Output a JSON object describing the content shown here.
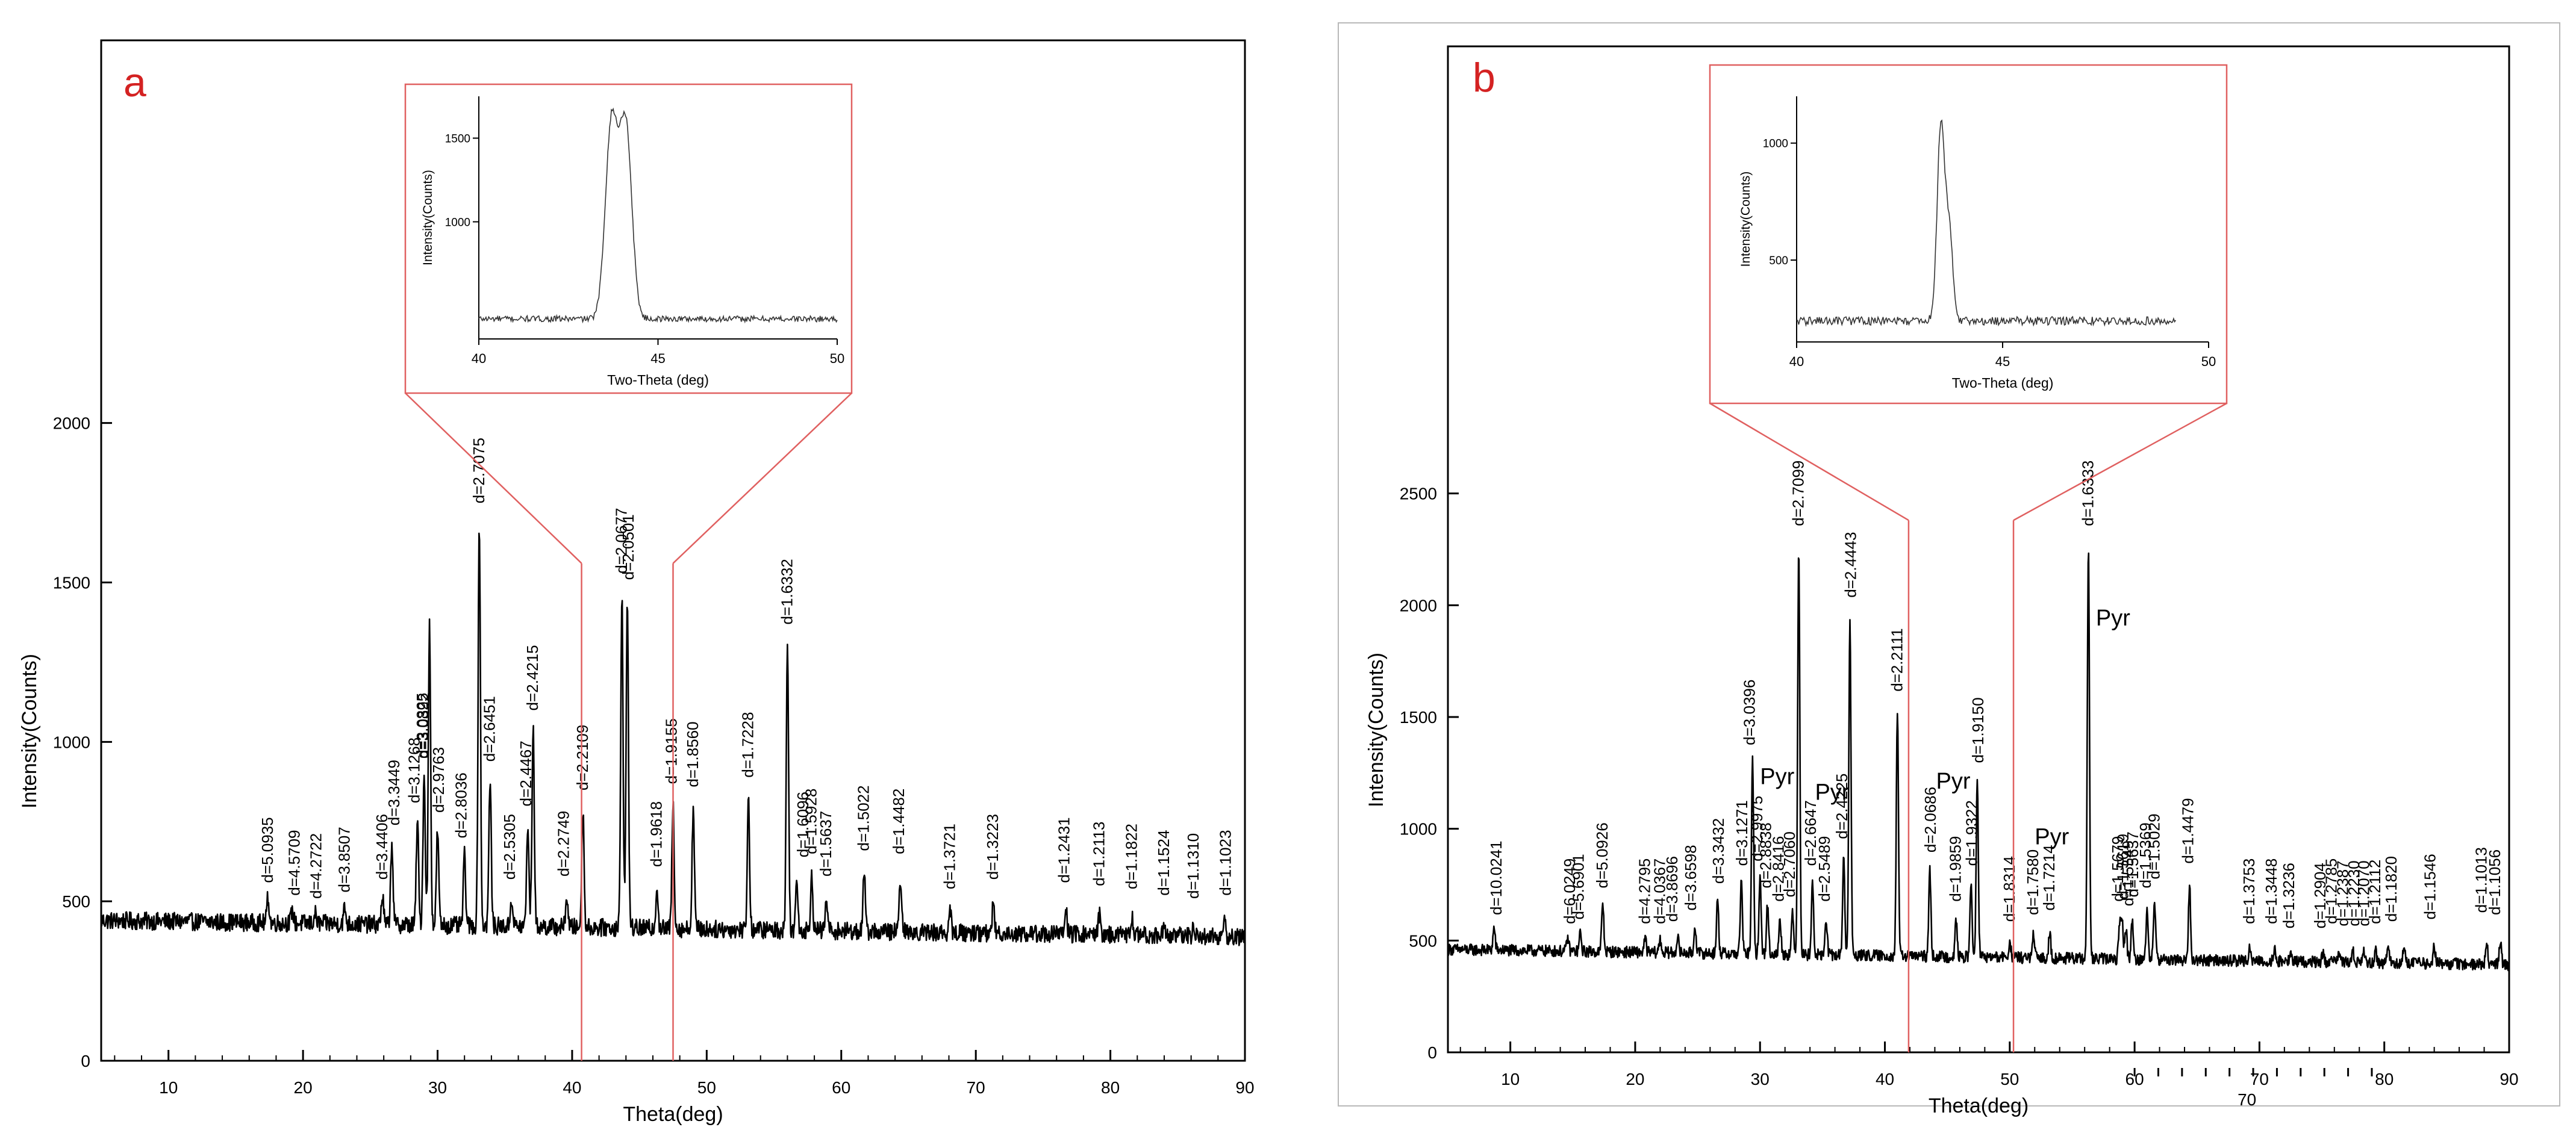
{
  "chart_data": [
    {
      "panel_label": "a",
      "type": "line",
      "xlabel": "Theta(deg)",
      "ylabel": "Intensity(Counts)",
      "xlim": [
        5,
        90
      ],
      "ylim": [
        0,
        3200
      ],
      "x_ticks": [
        10,
        20,
        30,
        40,
        50,
        60,
        70,
        80,
        90
      ],
      "y_ticks": [
        0,
        500,
        1000,
        1500,
        2000
      ],
      "grid": false,
      "baseline": 440,
      "peaks": [
        {
          "x": 17.4,
          "y": 520
        },
        {
          "x": 19.2,
          "y": 480
        },
        {
          "x": 20.9,
          "y": 470
        },
        {
          "x": 23.1,
          "y": 490
        },
        {
          "x": 25.9,
          "y": 530
        },
        {
          "x": 26.6,
          "y": 700
        },
        {
          "x": 28.5,
          "y": 770
        },
        {
          "x": 29.0,
          "y": 910
        },
        {
          "x": 29.4,
          "y": 1380
        },
        {
          "x": 30.0,
          "y": 740
        },
        {
          "x": 32.0,
          "y": 660
        },
        {
          "x": 33.1,
          "y": 1710
        },
        {
          "x": 33.9,
          "y": 900
        },
        {
          "x": 35.5,
          "y": 530
        },
        {
          "x": 36.7,
          "y": 760
        },
        {
          "x": 37.1,
          "y": 1060
        },
        {
          "x": 39.6,
          "y": 540
        },
        {
          "x": 40.8,
          "y": 810
        },
        {
          "x": 43.7,
          "y": 1490
        },
        {
          "x": 44.1,
          "y": 1470
        },
        {
          "x": 46.3,
          "y": 570
        },
        {
          "x": 47.5,
          "y": 830
        },
        {
          "x": 49.0,
          "y": 820
        },
        {
          "x": 53.1,
          "y": 850
        },
        {
          "x": 56.0,
          "y": 1330
        },
        {
          "x": 56.7,
          "y": 600
        },
        {
          "x": 57.8,
          "y": 610
        },
        {
          "x": 58.9,
          "y": 540
        },
        {
          "x": 61.7,
          "y": 620
        },
        {
          "x": 64.4,
          "y": 610
        },
        {
          "x": 68.1,
          "y": 500
        },
        {
          "x": 71.3,
          "y": 530
        },
        {
          "x": 76.7,
          "y": 520
        },
        {
          "x": 79.2,
          "y": 510
        },
        {
          "x": 81.6,
          "y": 500
        },
        {
          "x": 84.0,
          "y": 480
        },
        {
          "x": 86.2,
          "y": 470
        },
        {
          "x": 88.5,
          "y": 480
        }
      ],
      "annotations": [
        {
          "x": 17.4,
          "text": "d=5.0935"
        },
        {
          "x": 19.4,
          "text": "d=4.5709"
        },
        {
          "x": 21.0,
          "text": "d=4.2722"
        },
        {
          "x": 23.1,
          "text": "d=3.8507"
        },
        {
          "x": 25.9,
          "text": "d=3.4406"
        },
        {
          "x": 26.8,
          "text": "d=3.3449"
        },
        {
          "x": 28.3,
          "text": "d=3.1268"
        },
        {
          "x": 29.0,
          "text": "d=3.0392"
        },
        {
          "x": 28.9,
          "text": "d=3.0825"
        },
        {
          "x": 30.1,
          "text": "d=2.9763"
        },
        {
          "x": 31.8,
          "text": "d=2.8036"
        },
        {
          "x": 33.1,
          "text": "d=2.7075"
        },
        {
          "x": 33.9,
          "text": "d=2.6451"
        },
        {
          "x": 35.4,
          "text": "d=2.5305"
        },
        {
          "x": 36.6,
          "text": "d=2.4467"
        },
        {
          "x": 37.1,
          "text": "d=2.4215"
        },
        {
          "x": 39.4,
          "text": "d=2.2749"
        },
        {
          "x": 40.8,
          "text": "d=2.2109"
        },
        {
          "x": 43.7,
          "text": "d=2.0677"
        },
        {
          "x": 44.2,
          "text": "d=2.0501"
        },
        {
          "x": 46.3,
          "text": "d=1.9618"
        },
        {
          "x": 47.4,
          "text": "d=1.9155"
        },
        {
          "x": 49.0,
          "text": "d=1.8560"
        },
        {
          "x": 53.1,
          "text": "d=1.7228"
        },
        {
          "x": 56.0,
          "text": "d=1.6332"
        },
        {
          "x": 57.2,
          "text": "d=1.6096"
        },
        {
          "x": 57.8,
          "text": "d=1.5928"
        },
        {
          "x": 58.9,
          "text": "d=1.5637"
        },
        {
          "x": 61.7,
          "text": "d=1.5022"
        },
        {
          "x": 64.3,
          "text": "d=1.4482"
        },
        {
          "x": 68.1,
          "text": "d=1.3721"
        },
        {
          "x": 71.3,
          "text": "d=1.3223"
        },
        {
          "x": 76.6,
          "text": "d=1.2431"
        },
        {
          "x": 79.2,
          "text": "d=1.2113"
        },
        {
          "x": 81.6,
          "text": "d=1.1822"
        },
        {
          "x": 84.0,
          "text": "d=1.1524"
        },
        {
          "x": 86.2,
          "text": "d=1.1310"
        },
        {
          "x": 88.6,
          "text": "d=1.1023"
        }
      ],
      "zoom_range": [
        40.7,
        47.5
      ],
      "inset": {
        "type": "line",
        "xlabel": "Two-Theta (deg)",
        "ylabel": "Intensity(Counts)",
        "xlim": [
          40,
          50
        ],
        "ylim": [
          300,
          1750
        ],
        "x_ticks": [
          40,
          45,
          50
        ],
        "y_ticks": [
          1000,
          1500
        ],
        "baseline": 420,
        "peaks": [
          {
            "x": 43.7,
            "y": 1580
          },
          {
            "x": 44.1,
            "y": 1570
          }
        ]
      }
    },
    {
      "panel_label": "b",
      "type": "line",
      "xlabel": "Theta(deg)",
      "ylabel": "Intensity(Counts)",
      "xlim": [
        5,
        90
      ],
      "ylim": [
        0,
        4500
      ],
      "x_ticks": [
        10,
        20,
        30,
        40,
        50,
        60,
        70,
        80,
        90
      ],
      "y_ticks": [
        0,
        500,
        1000,
        1500,
        2000,
        2500
      ],
      "grid": false,
      "baseline": 460,
      "peaks": [
        {
          "x": 8.7,
          "y": 560
        },
        {
          "x": 14.6,
          "y": 520
        },
        {
          "x": 15.6,
          "y": 540
        },
        {
          "x": 17.4,
          "y": 680
        },
        {
          "x": 20.8,
          "y": 520
        },
        {
          "x": 22.0,
          "y": 520
        },
        {
          "x": 23.4,
          "y": 530
        },
        {
          "x": 24.8,
          "y": 580
        },
        {
          "x": 26.6,
          "y": 700
        },
        {
          "x": 28.5,
          "y": 780
        },
        {
          "x": 29.4,
          "y": 1320
        },
        {
          "x": 30.0,
          "y": 800
        },
        {
          "x": 30.6,
          "y": 680
        },
        {
          "x": 31.6,
          "y": 620
        },
        {
          "x": 32.6,
          "y": 640
        },
        {
          "x": 33.1,
          "y": 2300
        },
        {
          "x": 34.2,
          "y": 780
        },
        {
          "x": 35.3,
          "y": 620
        },
        {
          "x": 36.7,
          "y": 900
        },
        {
          "x": 37.2,
          "y": 1980
        },
        {
          "x": 41.0,
          "y": 1560
        },
        {
          "x": 43.6,
          "y": 840
        },
        {
          "x": 45.7,
          "y": 620
        },
        {
          "x": 46.9,
          "y": 780
        },
        {
          "x": 47.4,
          "y": 1240
        },
        {
          "x": 50.0,
          "y": 530
        },
        {
          "x": 51.9,
          "y": 560
        },
        {
          "x": 53.2,
          "y": 580
        },
        {
          "x": 56.3,
          "y": 2300
        },
        {
          "x": 58.8,
          "y": 620
        },
        {
          "x": 59.0,
          "y": 630
        },
        {
          "x": 59.3,
          "y": 600
        },
        {
          "x": 59.8,
          "y": 640
        },
        {
          "x": 61.0,
          "y": 680
        },
        {
          "x": 61.6,
          "y": 720
        },
        {
          "x": 64.4,
          "y": 790
        },
        {
          "x": 69.2,
          "y": 520
        },
        {
          "x": 71.2,
          "y": 520
        },
        {
          "x": 72.5,
          "y": 500
        },
        {
          "x": 75.1,
          "y": 500
        },
        {
          "x": 76.4,
          "y": 510
        },
        {
          "x": 77.5,
          "y": 510
        },
        {
          "x": 78.4,
          "y": 510
        },
        {
          "x": 79.3,
          "y": 520
        },
        {
          "x": 80.3,
          "y": 530
        },
        {
          "x": 81.6,
          "y": 550
        },
        {
          "x": 84.0,
          "y": 540
        },
        {
          "x": 88.2,
          "y": 570
        },
        {
          "x": 89.3,
          "y": 560
        }
      ],
      "annotations": [
        {
          "x": 8.9,
          "text": "d=10.0241"
        },
        {
          "x": 14.8,
          "text": "d=6.0249"
        },
        {
          "x": 15.5,
          "text": "d=5.6901"
        },
        {
          "x": 17.4,
          "text": "d=5.0926"
        },
        {
          "x": 20.8,
          "text": "d=4.2795"
        },
        {
          "x": 22.0,
          "text": "d=4.0367"
        },
        {
          "x": 23.0,
          "text": "d=3.8696"
        },
        {
          "x": 24.5,
          "text": "d=3.6598"
        },
        {
          "x": 26.7,
          "text": "d=3.3432"
        },
        {
          "x": 28.6,
          "text": "d=3.1271"
        },
        {
          "x": 29.2,
          "text": "d=3.0396"
        },
        {
          "x": 29.8,
          "text": "d=2.9975"
        },
        {
          "x": 30.5,
          "text": "d=2.8838"
        },
        {
          "x": 31.5,
          "text": "d=2.8416"
        },
        {
          "x": 32.4,
          "text": "d=2.7060"
        },
        {
          "x": 33.1,
          "text": "d=2.7099"
        },
        {
          "x": 34.1,
          "text": "d=2.6647"
        },
        {
          "x": 35.2,
          "text": "d=2.5489"
        },
        {
          "x": 36.6,
          "text": "d=2.4225"
        },
        {
          "x": 37.3,
          "text": "d=2.4443"
        },
        {
          "x": 41.0,
          "text": "d=2.2111"
        },
        {
          "x": 43.7,
          "text": "d=2.0686"
        },
        {
          "x": 45.7,
          "text": "d=1.9859"
        },
        {
          "x": 47.0,
          "text": "d=1.9322"
        },
        {
          "x": 47.5,
          "text": "d=1.9150"
        },
        {
          "x": 50.0,
          "text": "d=1.8314"
        },
        {
          "x": 51.9,
          "text": "d=1.7580"
        },
        {
          "x": 53.2,
          "text": "d=1.7214"
        },
        {
          "x": 56.3,
          "text": "d=1.6333"
        },
        {
          "x": 58.7,
          "text": "d=1.5679"
        },
        {
          "x": 59.1,
          "text": "d=1.5619"
        },
        {
          "x": 59.5,
          "text": "d=1.5549"
        },
        {
          "x": 59.9,
          "text": "d=1.5637"
        },
        {
          "x": 60.9,
          "text": "d=1.5369"
        },
        {
          "x": 61.6,
          "text": "d=1.5029"
        },
        {
          "x": 64.3,
          "text": "d=1.4479"
        },
        {
          "x": 69.2,
          "text": "d=1.3753"
        },
        {
          "x": 71.0,
          "text": "d=1.3448"
        },
        {
          "x": 72.4,
          "text": "d=1.3236"
        },
        {
          "x": 74.9,
          "text": "d=1.2904"
        },
        {
          "x": 75.8,
          "text": "d=1.2785"
        },
        {
          "x": 76.7,
          "text": "d=1.2387"
        },
        {
          "x": 77.6,
          "text": "d=1.2230"
        },
        {
          "x": 78.4,
          "text": "d=1.2070"
        },
        {
          "x": 79.3,
          "text": "d=1.2112"
        },
        {
          "x": 80.6,
          "text": "d=1.1820"
        },
        {
          "x": 83.7,
          "text": "d=1.1546"
        },
        {
          "x": 87.8,
          "text": "d=1.1013"
        },
        {
          "x": 88.9,
          "text": "d=1.1056"
        }
      ],
      "phase_labels": [
        {
          "x": 30.0,
          "y": 1200,
          "text": "Pyr"
        },
        {
          "x": 34.4,
          "y": 1130,
          "text": "Pyr"
        },
        {
          "x": 44.1,
          "y": 1180,
          "text": "Pyr"
        },
        {
          "x": 52.0,
          "y": 930,
          "text": "Pyr"
        },
        {
          "x": 56.9,
          "y": 1910,
          "text": "Pyr"
        }
      ],
      "zoom_range": [
        41.9,
        50.3
      ],
      "bottom_tick_label": {
        "x": 69.0,
        "text": "70"
      },
      "inset": {
        "type": "line",
        "xlabel": "Two-Theta (deg)",
        "ylabel": "Intensity(Counts)",
        "xlim": [
          40,
          50
        ],
        "ylim": [
          150,
          1200
        ],
        "x_ticks": [
          40,
          45,
          50
        ],
        "y_ticks": [
          500,
          1000
        ],
        "baseline": 240,
        "peaks": [
          {
            "x": 43.5,
            "y": 1070
          },
          {
            "x": 43.7,
            "y": 620
          }
        ]
      }
    }
  ]
}
